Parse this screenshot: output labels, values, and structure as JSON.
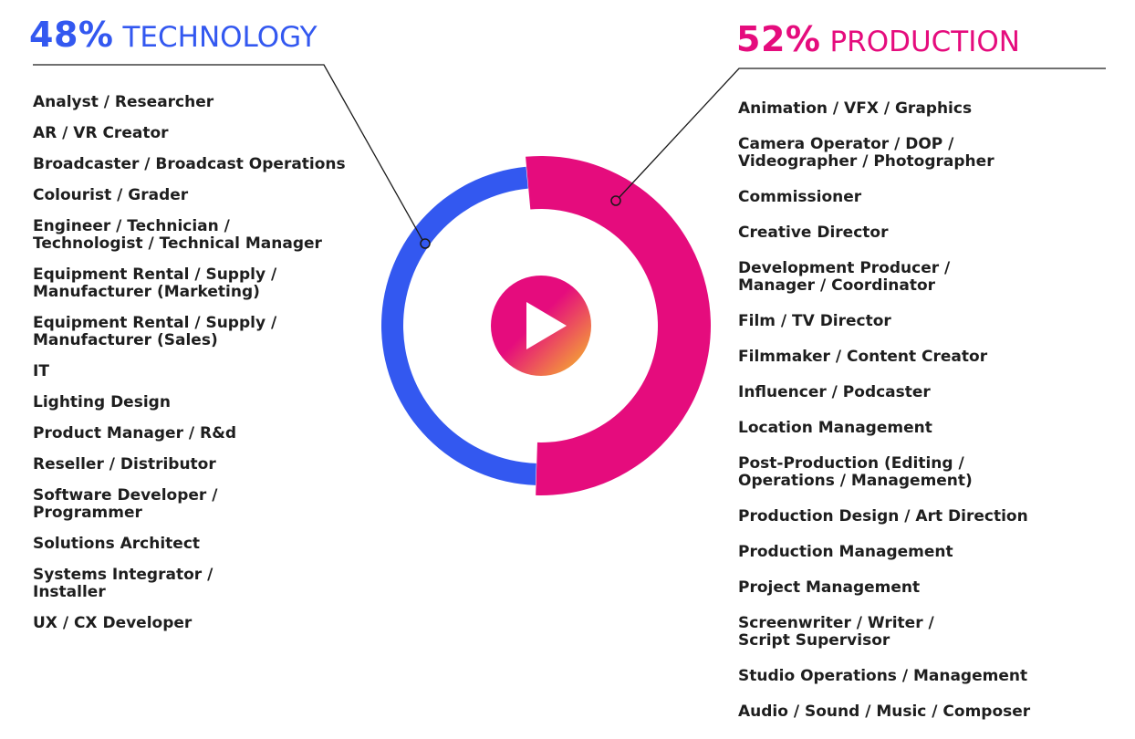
{
  "colors": {
    "technology": "#3358F0",
    "production": "#E50C7D",
    "play_gradient_start": "#E50C7D",
    "play_gradient_end": "#F7C326",
    "leader": "#1a1a1a"
  },
  "chart_data": {
    "type": "pie",
    "variant": "donut",
    "series": [
      {
        "name": "TECHNOLOGY",
        "value": 48,
        "display": "48%",
        "color": "#3358F0"
      },
      {
        "name": "PRODUCTION",
        "value": 52,
        "display": "52%",
        "color": "#E50C7D"
      }
    ],
    "center_icon": "play-icon"
  },
  "technology": {
    "percent": "48%",
    "label": "TECHNOLOGY",
    "items": [
      "Analyst / Researcher",
      "AR / VR Creator",
      "Broadcaster / Broadcast Operations",
      "Colourist / Grader",
      "Engineer / Technician /\nTechnologist / Technical Manager",
      "Equipment Rental / Supply /\nManufacturer (Marketing)",
      "Equipment Rental / Supply /\nManufacturer (Sales)",
      "IT",
      "Lighting Design",
      "Product Manager / R&d",
      "Reseller / Distributor",
      "Software Developer /\nProgrammer",
      "Solutions Architect",
      "Systems Integrator /\nInstaller",
      "UX / CX Developer"
    ]
  },
  "production": {
    "percent": "52%",
    "label": "PRODUCTION",
    "items": [
      "Animation / VFX / Graphics",
      "Camera Operator / DOP /\nVideographer / Photographer",
      "Commissioner",
      "Creative Director",
      "Development Producer /\nManager / Coordinator",
      "Film / TV Director",
      "Filmmaker / Content Creator",
      "Influencer / Podcaster",
      "Location Management",
      "Post-Production (Editing /\nOperations / Management)",
      "Production Design / Art Direction",
      "Production Management",
      "Project Management",
      "Screenwriter / Writer /\nScript Supervisor",
      "Studio Operations / Management",
      "Audio / Sound / Music / Composer"
    ]
  }
}
